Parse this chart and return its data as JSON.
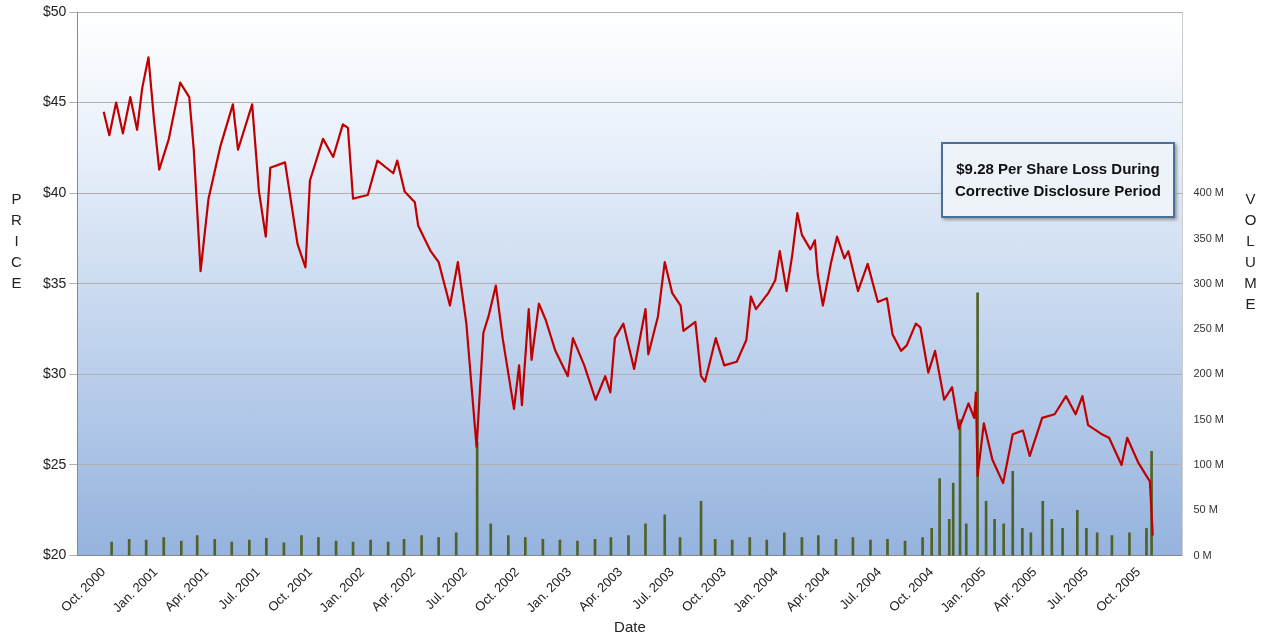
{
  "chart_data": {
    "type": "line",
    "xlabel": "Date",
    "ylabel": "PRICE",
    "y2label": "VOLUME",
    "annotations": [
      "$9.28 Per Share Loss During Corrective Disclosure Period"
    ],
    "xlim": [
      "2000-10-01",
      "2005-11-01"
    ],
    "xticks": [
      {
        "value": "2000-10",
        "label": "Oct. 2000"
      },
      {
        "value": "2001-01",
        "label": "Jan. 2001"
      },
      {
        "value": "2001-04",
        "label": "Apr. 2001"
      },
      {
        "value": "2001-07",
        "label": "Jul. 2001"
      },
      {
        "value": "2001-10",
        "label": "Oct. 2001"
      },
      {
        "value": "2002-01",
        "label": "Jan. 2002"
      },
      {
        "value": "2002-04",
        "label": "Apr. 2002"
      },
      {
        "value": "2002-07",
        "label": "Jul. 2002"
      },
      {
        "value": "2002-10",
        "label": "Oct. 2002"
      },
      {
        "value": "2003-01",
        "label": "Jan. 2003"
      },
      {
        "value": "2003-04",
        "label": "Apr. 2003"
      },
      {
        "value": "2003-07",
        "label": "Jul. 2003"
      },
      {
        "value": "2003-10",
        "label": "Oct. 2003"
      },
      {
        "value": "2004-01",
        "label": "Jan. 2004"
      },
      {
        "value": "2004-04",
        "label": "Apr. 2004"
      },
      {
        "value": "2004-07",
        "label": "Jul. 2004"
      },
      {
        "value": "2004-10",
        "label": "Oct. 2004"
      },
      {
        "value": "2005-01",
        "label": "Jan. 2005"
      },
      {
        "value": "2005-04",
        "label": "Apr. 2005"
      },
      {
        "value": "2005-07",
        "label": "Jul. 2005"
      },
      {
        "value": "2005-10",
        "label": "Oct. 2005"
      }
    ],
    "ylim": [
      20,
      50
    ],
    "yticks": [
      {
        "value": 20,
        "label": "$20"
      },
      {
        "value": 25,
        "label": "$25"
      },
      {
        "value": 30,
        "label": "$30"
      },
      {
        "value": 35,
        "label": "$35"
      },
      {
        "value": 40,
        "label": "$40"
      },
      {
        "value": 45,
        "label": "$45"
      },
      {
        "value": 50,
        "label": "$50"
      }
    ],
    "y2lim": [
      0,
      600
    ],
    "y2ticks": [
      {
        "value": 0,
        "label": "0 M"
      },
      {
        "value": 50,
        "label": "50 M"
      },
      {
        "value": 100,
        "label": "100 M"
      },
      {
        "value": 150,
        "label": "150 M"
      },
      {
        "value": 200,
        "label": "200 M"
      },
      {
        "value": 250,
        "label": "250 M"
      },
      {
        "value": 300,
        "label": "300 M"
      },
      {
        "value": 350,
        "label": "350 M"
      },
      {
        "value": 400,
        "label": "400 M"
      }
    ],
    "grid": "y",
    "legend": false,
    "marker": "none",
    "line_style": "solid",
    "series": [
      {
        "type": "bar",
        "axis": "y2",
        "color": "#4f6228",
        "x": [
          "2000-10-15",
          "2000-11-15",
          "2000-12-15",
          "2001-01-15",
          "2001-02-15",
          "2001-03-15",
          "2001-04-15",
          "2001-05-15",
          "2001-06-15",
          "2001-07-15",
          "2001-08-15",
          "2001-09-15",
          "2001-10-15",
          "2001-11-15",
          "2001-12-15",
          "2002-01-15",
          "2002-02-15",
          "2002-03-15",
          "2002-04-15",
          "2002-05-15",
          "2002-06-15",
          "2002-07-22",
          "2002-08-15",
          "2002-09-15",
          "2002-10-15",
          "2002-11-15",
          "2002-12-15",
          "2003-01-15",
          "2003-02-15",
          "2003-03-15",
          "2003-04-15",
          "2003-05-15",
          "2003-06-18",
          "2003-07-15",
          "2003-08-21",
          "2003-09-15",
          "2003-10-15",
          "2003-11-15",
          "2003-12-15",
          "2004-01-15",
          "2004-02-15",
          "2004-03-15",
          "2004-04-15",
          "2004-05-15",
          "2004-06-15",
          "2004-07-15",
          "2004-08-15",
          "2004-09-15",
          "2004-10-01",
          "2004-10-15",
          "2004-11-01",
          "2004-11-08",
          "2004-11-20",
          "2004-12-01",
          "2004-12-21",
          "2005-01-05",
          "2005-01-20",
          "2005-02-05",
          "2005-02-21",
          "2005-03-10",
          "2005-03-25",
          "2005-04-15",
          "2005-05-01",
          "2005-05-20",
          "2005-06-15",
          "2005-07-01",
          "2005-07-20",
          "2005-08-15",
          "2005-09-15",
          "2005-10-15",
          "2005-10-24"
        ],
        "values": [
          15,
          18,
          17,
          20,
          16,
          22,
          18,
          15,
          17,
          19,
          14,
          22,
          20,
          16,
          15,
          17,
          15,
          18,
          22,
          20,
          25,
          125,
          35,
          22,
          20,
          18,
          17,
          16,
          18,
          20,
          22,
          35,
          45,
          20,
          60,
          18,
          17,
          20,
          17,
          25,
          20,
          22,
          18,
          20,
          17,
          18,
          16,
          20,
          30,
          85,
          40,
          80,
          150,
          35,
          290,
          60,
          40,
          35,
          93,
          30,
          25,
          60,
          40,
          30,
          50,
          30,
          25,
          22,
          25,
          30,
          115
        ]
      },
      {
        "axis": "y",
        "color": "#c00000",
        "x": [
          "2000-10-01",
          "2000-10-11",
          "2000-10-23",
          "2000-11-04",
          "2000-11-17",
          "2000-11-29",
          "2000-12-08",
          "2000-12-19",
          "2000-12-29",
          "2001-01-07",
          "2001-01-24",
          "2001-02-13",
          "2001-03-01",
          "2001-03-09",
          "2001-03-21",
          "2001-04-04",
          "2001-04-25",
          "2001-05-17",
          "2001-05-26",
          "2001-06-20",
          "2001-07-02",
          "2001-07-14",
          "2001-07-22",
          "2001-08-17",
          "2001-09-08",
          "2001-09-22",
          "2001-09-30",
          "2001-10-23",
          "2001-11-10",
          "2001-11-27",
          "2001-12-06",
          "2001-12-15",
          "2002-01-10",
          "2002-01-27",
          "2002-02-24",
          "2002-03-03",
          "2002-03-16",
          "2002-04-03",
          "2002-04-09",
          "2002-05-01",
          "2002-05-15",
          "2002-06-04",
          "2002-06-18",
          "2002-07-03",
          "2002-07-13",
          "2002-07-21",
          "2002-08-02",
          "2002-08-11",
          "2002-08-24",
          "2002-09-05",
          "2002-09-25",
          "2002-10-04",
          "2002-10-09",
          "2002-10-21",
          "2002-10-26",
          "2002-11-08",
          "2002-11-20",
          "2002-12-07",
          "2002-12-29",
          "2003-01-07",
          "2003-01-27",
          "2003-02-16",
          "2003-03-05",
          "2003-03-14",
          "2003-03-22",
          "2003-04-06",
          "2003-04-25",
          "2003-05-15",
          "2003-05-20",
          "2003-06-06",
          "2003-06-18",
          "2003-07-01",
          "2003-07-16",
          "2003-07-21",
          "2003-08-11",
          "2003-08-21",
          "2003-08-28",
          "2003-09-16",
          "2003-10-01",
          "2003-10-23",
          "2003-11-09",
          "2003-11-17",
          "2003-11-26",
          "2003-12-18",
          "2003-12-30",
          "2004-01-07",
          "2004-01-19",
          "2004-01-29",
          "2004-02-07",
          "2004-02-15",
          "2004-03-01",
          "2004-03-09",
          "2004-03-14",
          "2004-03-23",
          "2004-04-06",
          "2004-04-17",
          "2004-04-30",
          "2004-05-07",
          "2004-05-24",
          "2004-06-10",
          "2004-06-28",
          "2004-07-14",
          "2004-07-24",
          "2004-08-08",
          "2004-08-18",
          "2004-09-03",
          "2004-09-11",
          "2004-09-25",
          "2004-10-07",
          "2004-10-23",
          "2004-11-06",
          "2004-11-18",
          "2004-12-05",
          "2004-12-15",
          "2004-12-18",
          "2004-12-21",
          "2005-01-01",
          "2005-01-16",
          "2005-02-04",
          "2005-02-21",
          "2005-03-11",
          "2005-03-23",
          "2005-04-14",
          "2005-05-06",
          "2005-05-26",
          "2005-06-12",
          "2005-06-24",
          "2005-07-04",
          "2005-07-28",
          "2005-08-10",
          "2005-09-01",
          "2005-09-11",
          "2005-10-01",
          "2005-10-21",
          "2005-10-26"
        ],
        "values": [
          44.5,
          43.2,
          45.0,
          43.3,
          45.3,
          43.5,
          45.8,
          47.5,
          44.0,
          41.3,
          43.0,
          46.1,
          45.3,
          42.4,
          35.7,
          39.7,
          42.6,
          44.9,
          42.4,
          44.9,
          40.1,
          37.6,
          41.4,
          41.7,
          37.2,
          35.9,
          40.7,
          43.0,
          42.0,
          43.8,
          43.6,
          39.7,
          39.9,
          41.8,
          41.1,
          41.8,
          40.1,
          39.5,
          38.2,
          36.8,
          36.2,
          33.8,
          36.2,
          32.8,
          29.0,
          26.0,
          32.3,
          33.2,
          34.9,
          32.0,
          28.1,
          30.5,
          28.3,
          33.6,
          30.8,
          33.9,
          33.0,
          31.3,
          29.9,
          32.0,
          30.5,
          28.6,
          29.9,
          29.0,
          32.0,
          32.8,
          30.3,
          33.6,
          31.1,
          33.2,
          36.2,
          34.5,
          33.8,
          32.4,
          32.9,
          29.9,
          29.6,
          32.0,
          30.5,
          30.7,
          31.9,
          34.3,
          33.6,
          34.5,
          35.2,
          36.8,
          34.6,
          36.6,
          38.9,
          37.7,
          36.9,
          37.4,
          35.5,
          33.8,
          36.1,
          37.6,
          36.4,
          36.8,
          34.6,
          36.1,
          34.0,
          34.2,
          32.2,
          31.3,
          31.6,
          32.8,
          32.6,
          30.1,
          31.3,
          28.6,
          29.3,
          27.0,
          28.4,
          27.6,
          29.0,
          24.4,
          27.3,
          25.3,
          24.0,
          26.7,
          26.9,
          25.5,
          27.6,
          27.8,
          28.8,
          27.8,
          28.8,
          27.2,
          26.7,
          26.5,
          25.0,
          26.5,
          25.1,
          24.1,
          21.1
        ]
      }
    ]
  }
}
